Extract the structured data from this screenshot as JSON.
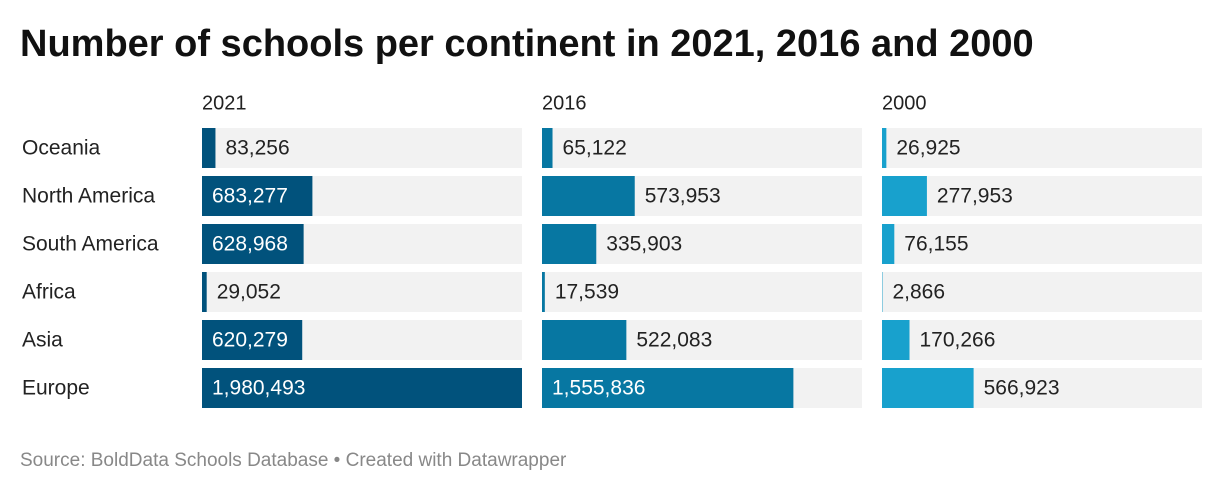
{
  "chart_data": {
    "type": "bar",
    "title": "Number of schools per continent in 2021, 2016 and 2000",
    "categories": [
      "Oceania",
      "North America",
      "South America",
      "Africa",
      "Asia",
      "Europe"
    ],
    "series": [
      {
        "name": "2021",
        "color": "#01527c",
        "values": [
          83256,
          683277,
          628968,
          29052,
          620279,
          1980493
        ],
        "value_labels": [
          "83,256",
          "683,277",
          "628,968",
          "29,052",
          "620,279",
          "1,980,493"
        ]
      },
      {
        "name": "2016",
        "color": "#0777a2",
        "values": [
          65122,
          573953,
          335903,
          17539,
          522083,
          1555836
        ],
        "value_labels": [
          "65,122",
          "573,953",
          "335,903",
          "17,539",
          "522,083",
          "1,555,836"
        ]
      },
      {
        "name": "2000",
        "color": "#18a1cd",
        "values": [
          26925,
          277953,
          76155,
          2866,
          170266,
          566923
        ],
        "value_labels": [
          "26,925",
          "277,953",
          "76,155",
          "2,866",
          "170,266",
          "566,923"
        ]
      }
    ],
    "xlim": [
      0,
      1980493
    ],
    "source": "Source: BoldData Schools Database • Created with Datawrapper"
  }
}
